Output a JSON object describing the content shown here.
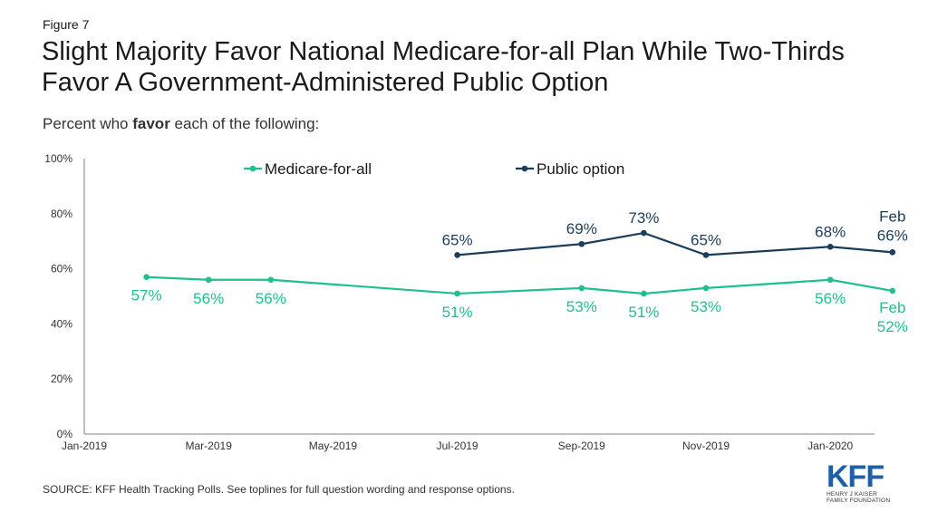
{
  "figure_label": "Figure 7",
  "title": "Slight Majority Favor National Medicare-for-all Plan While Two-Thirds Favor A Government-Administered Public Option",
  "subtitle_pre": "Percent who ",
  "subtitle_bold": "favor",
  "subtitle_post": " each of the following:",
  "source": "SOURCE: KFF Health Tracking Polls. See toplines for full question wording and response options.",
  "logo": {
    "mark": "KFF",
    "line1": "HENRY J KAISER",
    "line2": "FAMILY FOUNDATION"
  },
  "colors": {
    "medicare": "#1fbf8f",
    "public": "#1a3d5c",
    "axis": "#808080"
  },
  "chart_data": {
    "type": "line",
    "x_tick_labels": [
      "Jan-2019",
      "Mar-2019",
      "May-2019",
      "Jul-2019",
      "Sep-2019",
      "Nov-2019",
      "Jan-2020"
    ],
    "x_range": [
      "2019-01",
      "2020-02"
    ],
    "y_tick_labels": [
      "0%",
      "20%",
      "40%",
      "60%",
      "80%",
      "100%"
    ],
    "ylim": [
      0,
      100
    ],
    "legend_position": "top",
    "series": [
      {
        "name": "Medicare-for-all",
        "color_key": "medicare",
        "points": [
          {
            "x": "2019-02",
            "y": 57,
            "label": "57%"
          },
          {
            "x": "2019-03",
            "y": 56,
            "label": "56%"
          },
          {
            "x": "2019-04",
            "y": 56,
            "label": "56%"
          },
          {
            "x": "2019-07",
            "y": 51,
            "label": "51%"
          },
          {
            "x": "2019-09",
            "y": 53,
            "label": "53%"
          },
          {
            "x": "2019-10",
            "y": 51,
            "label": "51%"
          },
          {
            "x": "2019-11",
            "y": 53,
            "label": "53%"
          },
          {
            "x": "2020-01",
            "y": 56,
            "label": "56%"
          },
          {
            "x": "2020-02",
            "y": 52,
            "label": "Feb 52%"
          }
        ]
      },
      {
        "name": "Public option",
        "color_key": "public",
        "points": [
          {
            "x": "2019-07",
            "y": 65,
            "label": "65%"
          },
          {
            "x": "2019-09",
            "y": 69,
            "label": "69%"
          },
          {
            "x": "2019-10",
            "y": 73,
            "label": "73%"
          },
          {
            "x": "2019-11",
            "y": 65,
            "label": "65%"
          },
          {
            "x": "2020-01",
            "y": 68,
            "label": "68%"
          },
          {
            "x": "2020-02",
            "y": 66,
            "label": "Feb 66%"
          }
        ]
      }
    ]
  }
}
